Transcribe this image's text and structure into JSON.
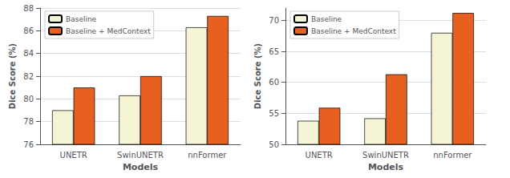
{
  "chart_data": [
    {
      "type": "bar",
      "categories": [
        "UNETR",
        "SwinUNETR",
        "nnFormer"
      ],
      "series": [
        {
          "name": "Baseline",
          "color": "#f5f5d5",
          "values": [
            79.0,
            80.3,
            86.3
          ]
        },
        {
          "name": "Baseline + MedContext",
          "color": "#e86020",
          "values": [
            81.0,
            82.0,
            87.3
          ]
        }
      ],
      "xlabel": "Models",
      "ylabel": "Dice Score (%)",
      "ylim": [
        76,
        88
      ],
      "yticks": [
        76,
        78,
        80,
        82,
        84,
        86,
        88
      ],
      "grid": true,
      "legend": "upper left"
    },
    {
      "type": "bar",
      "categories": [
        "UNETR",
        "SwinUNETR",
        "nnFormer"
      ],
      "series": [
        {
          "name": "Baseline",
          "color": "#f5f5d5",
          "values": [
            53.8,
            54.2,
            68.0
          ]
        },
        {
          "name": "Baseline + MedContext",
          "color": "#e86020",
          "values": [
            55.9,
            61.3,
            71.2
          ]
        }
      ],
      "xlabel": "Models",
      "ylabel": "Dice Score (%)",
      "ylim": [
        50,
        72
      ],
      "yticks": [
        50,
        55,
        60,
        65,
        70
      ],
      "grid": true,
      "legend": "upper left"
    }
  ]
}
